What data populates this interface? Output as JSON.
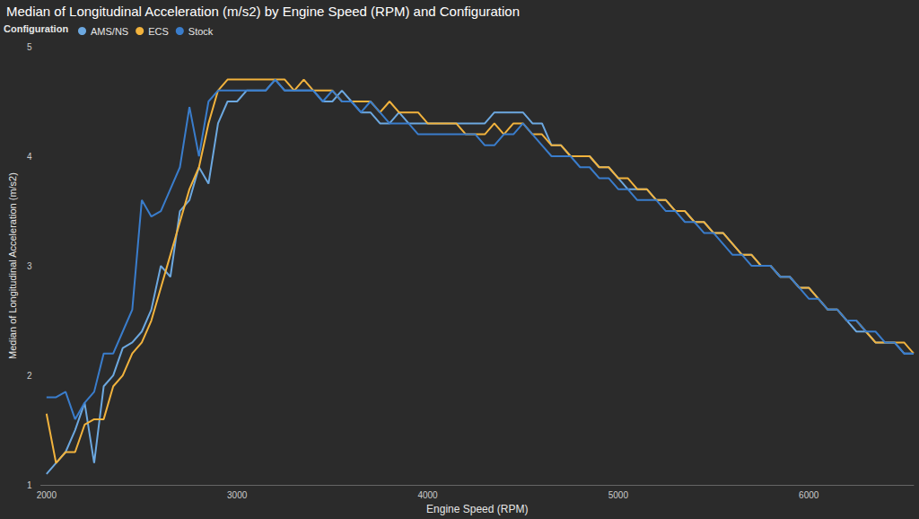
{
  "chart_data": {
    "type": "line",
    "title": "Median of Longitudinal Acceleration (m/s2) by Engine Speed (RPM) and Configuration",
    "legend_title": "Configuration",
    "x_label": "Engine Speed (RPM)",
    "y_label": "Median of Longitudinal Acceleration (m/s2)",
    "x": [
      2000,
      2050,
      2100,
      2150,
      2200,
      2250,
      2300,
      2350,
      2400,
      2450,
      2500,
      2550,
      2600,
      2650,
      2700,
      2750,
      2800,
      2850,
      2900,
      2950,
      3000,
      3050,
      3100,
      3150,
      3200,
      3250,
      3300,
      3350,
      3400,
      3450,
      3500,
      3550,
      3600,
      3650,
      3700,
      3750,
      3800,
      3850,
      3900,
      3950,
      4000,
      4050,
      4100,
      4150,
      4200,
      4250,
      4300,
      4350,
      4400,
      4450,
      4500,
      4550,
      4600,
      4650,
      4700,
      4750,
      4800,
      4850,
      4900,
      4950,
      5000,
      5050,
      5100,
      5150,
      5200,
      5250,
      5300,
      5350,
      5400,
      5450,
      5500,
      5550,
      5600,
      5650,
      5700,
      5750,
      5800,
      5850,
      5900,
      5950,
      6000,
      6050,
      6100,
      6150,
      6200,
      6250,
      6300,
      6350,
      6400,
      6450,
      6500,
      6550
    ],
    "series": [
      {
        "name": "AMS/NS",
        "color": "#6ca8e0",
        "values": [
          1.1,
          1.2,
          1.3,
          1.5,
          1.75,
          1.2,
          1.9,
          2.0,
          2.25,
          2.3,
          2.4,
          2.6,
          3.0,
          2.9,
          3.5,
          3.6,
          3.9,
          3.75,
          4.3,
          4.5,
          4.5,
          4.6,
          4.6,
          4.6,
          4.7,
          4.6,
          4.6,
          4.6,
          4.6,
          4.5,
          4.5,
          4.6,
          4.5,
          4.4,
          4.4,
          4.3,
          4.3,
          4.4,
          4.3,
          4.3,
          4.3,
          4.3,
          4.3,
          4.3,
          4.3,
          4.3,
          4.3,
          4.4,
          4.4,
          4.4,
          4.4,
          4.3,
          4.3,
          4.1,
          4.1,
          4.0,
          4.0,
          4.0,
          3.9,
          3.9,
          3.8,
          3.7,
          3.7,
          3.7,
          3.6,
          3.6,
          3.5,
          3.5,
          3.4,
          3.4,
          3.3,
          3.3,
          3.2,
          3.1,
          3.1,
          3.0,
          3.0,
          2.9,
          2.9,
          2.8,
          2.8,
          2.7,
          2.6,
          2.6,
          2.5,
          2.4,
          2.4,
          2.3,
          2.3,
          2.3,
          2.2,
          2.2
        ]
      },
      {
        "name": "ECS",
        "color": "#f2b33d",
        "values": [
          1.65,
          1.2,
          1.3,
          1.3,
          1.55,
          1.6,
          1.6,
          1.9,
          2.0,
          2.2,
          2.3,
          2.5,
          2.8,
          3.1,
          3.4,
          3.7,
          3.9,
          4.3,
          4.6,
          4.7,
          4.7,
          4.7,
          4.7,
          4.7,
          4.7,
          4.7,
          4.6,
          4.7,
          4.6,
          4.6,
          4.6,
          4.5,
          4.5,
          4.5,
          4.5,
          4.4,
          4.5,
          4.4,
          4.4,
          4.4,
          4.3,
          4.3,
          4.3,
          4.3,
          4.2,
          4.2,
          4.2,
          4.3,
          4.2,
          4.3,
          4.3,
          4.2,
          4.2,
          4.1,
          4.1,
          4.0,
          4.0,
          4.0,
          3.9,
          3.9,
          3.8,
          3.8,
          3.7,
          3.7,
          3.6,
          3.6,
          3.5,
          3.5,
          3.4,
          3.4,
          3.3,
          3.3,
          3.2,
          3.1,
          3.1,
          3.0,
          3.0,
          2.9,
          2.9,
          2.8,
          2.8,
          2.7,
          2.6,
          2.6,
          2.5,
          2.5,
          2.4,
          2.3,
          2.3,
          2.3,
          2.3,
          2.2
        ]
      },
      {
        "name": "Stock",
        "color": "#3a7dcc",
        "values": [
          1.8,
          1.8,
          1.85,
          1.6,
          1.75,
          1.85,
          2.2,
          2.2,
          2.4,
          2.6,
          3.6,
          3.45,
          3.5,
          3.7,
          3.9,
          4.45,
          4.0,
          4.5,
          4.6,
          4.6,
          4.6,
          4.6,
          4.6,
          4.6,
          4.7,
          4.6,
          4.6,
          4.6,
          4.6,
          4.5,
          4.6,
          4.5,
          4.5,
          4.4,
          4.5,
          4.4,
          4.3,
          4.3,
          4.3,
          4.2,
          4.2,
          4.2,
          4.2,
          4.2,
          4.2,
          4.2,
          4.1,
          4.1,
          4.2,
          4.2,
          4.3,
          4.2,
          4.1,
          4.0,
          4.0,
          4.0,
          3.9,
          3.9,
          3.8,
          3.8,
          3.7,
          3.7,
          3.6,
          3.6,
          3.6,
          3.5,
          3.5,
          3.4,
          3.4,
          3.3,
          3.3,
          3.2,
          3.1,
          3.1,
          3.0,
          3.0,
          3.0,
          2.9,
          2.9,
          2.8,
          2.7,
          2.7,
          2.6,
          2.6,
          2.5,
          2.5,
          2.4,
          2.4,
          2.3,
          2.3,
          2.2,
          2.2
        ]
      }
    ],
    "xlim": [
      1970,
      6550
    ],
    "xticks": [
      2000,
      3000,
      4000,
      5000,
      6000
    ],
    "ylim": [
      1,
      5
    ],
    "yticks": [
      1,
      2,
      3,
      4,
      5
    ],
    "grid": false,
    "legend": "top-left"
  }
}
